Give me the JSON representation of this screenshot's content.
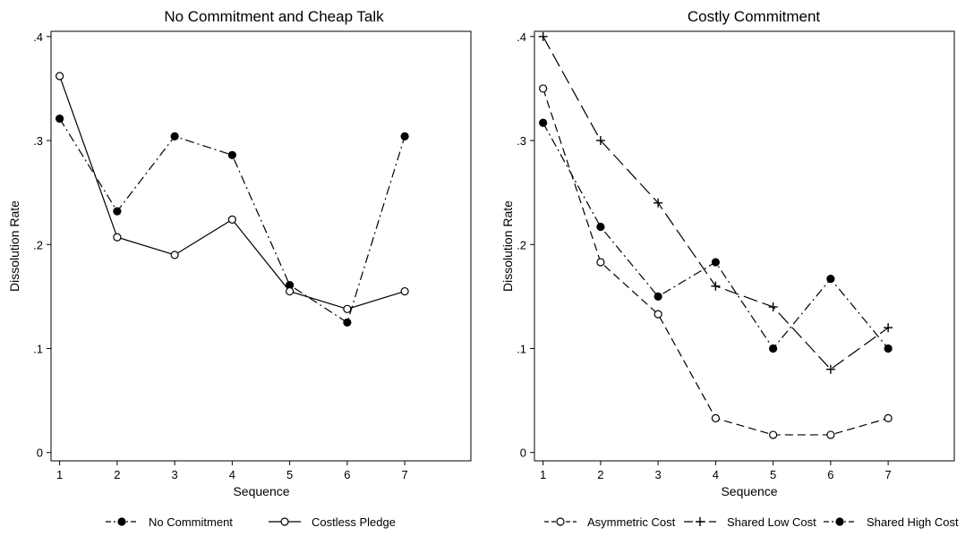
{
  "chart_data": [
    {
      "type": "line",
      "title": "No Commitment and Cheap Talk",
      "xlabel": "Sequence",
      "ylabel": "Dissolution Rate",
      "x": [
        1,
        2,
        3,
        4,
        5,
        6,
        7
      ],
      "xlim": [
        0.85,
        8.15
      ],
      "ylim": [
        -0.008,
        0.405
      ],
      "yticks": [
        0,
        0.1,
        0.2,
        0.3,
        0.4
      ],
      "ytick_labels": [
        "0",
        ".1",
        ".2",
        ".3",
        ".4"
      ],
      "xtick_labels": [
        "1",
        "2",
        "3",
        "4",
        "5",
        "6",
        "7"
      ],
      "grid": false,
      "legend_position": "bottom",
      "series": [
        {
          "name": "No Commitment",
          "values": [
            0.321,
            0.232,
            0.304,
            0.286,
            0.161,
            0.125,
            0.304
          ],
          "marker": "filled-circle",
          "dash": "dash-dot",
          "color": "#000000"
        },
        {
          "name": "Costless Pledge",
          "values": [
            0.362,
            0.207,
            0.19,
            0.224,
            0.155,
            0.138,
            0.155
          ],
          "marker": "hollow-circle",
          "dash": "solid",
          "color": "#000000"
        }
      ]
    },
    {
      "type": "line",
      "title": "Costly Commitment",
      "xlabel": "Sequence",
      "ylabel": "Dissolution Rate",
      "x": [
        1,
        2,
        3,
        4,
        5,
        6,
        7
      ],
      "xlim": [
        0.85,
        8.15
      ],
      "ylim": [
        -0.008,
        0.405
      ],
      "yticks": [
        0,
        0.1,
        0.2,
        0.3,
        0.4
      ],
      "ytick_labels": [
        "0",
        ".1",
        ".2",
        ".3",
        ".4"
      ],
      "xtick_labels": [
        "1",
        "2",
        "3",
        "4",
        "5",
        "6",
        "7"
      ],
      "grid": false,
      "legend_position": "bottom",
      "series": [
        {
          "name": "Asymmetric Cost",
          "values": [
            0.35,
            0.183,
            0.133,
            0.033,
            0.017,
            0.017,
            0.033
          ],
          "marker": "hollow-circle",
          "dash": "dash",
          "color": "#000000"
        },
        {
          "name": "Shared Low Cost",
          "values": [
            0.4,
            0.3,
            0.24,
            0.16,
            0.14,
            0.08,
            0.12
          ],
          "marker": "plus",
          "dash": "long-dash",
          "color": "#000000"
        },
        {
          "name": "Shared High Cost",
          "values": [
            0.317,
            0.217,
            0.15,
            0.183,
            0.1,
            0.167,
            0.1
          ],
          "marker": "filled-circle",
          "dash": "dash-dot",
          "color": "#000000"
        }
      ]
    }
  ]
}
